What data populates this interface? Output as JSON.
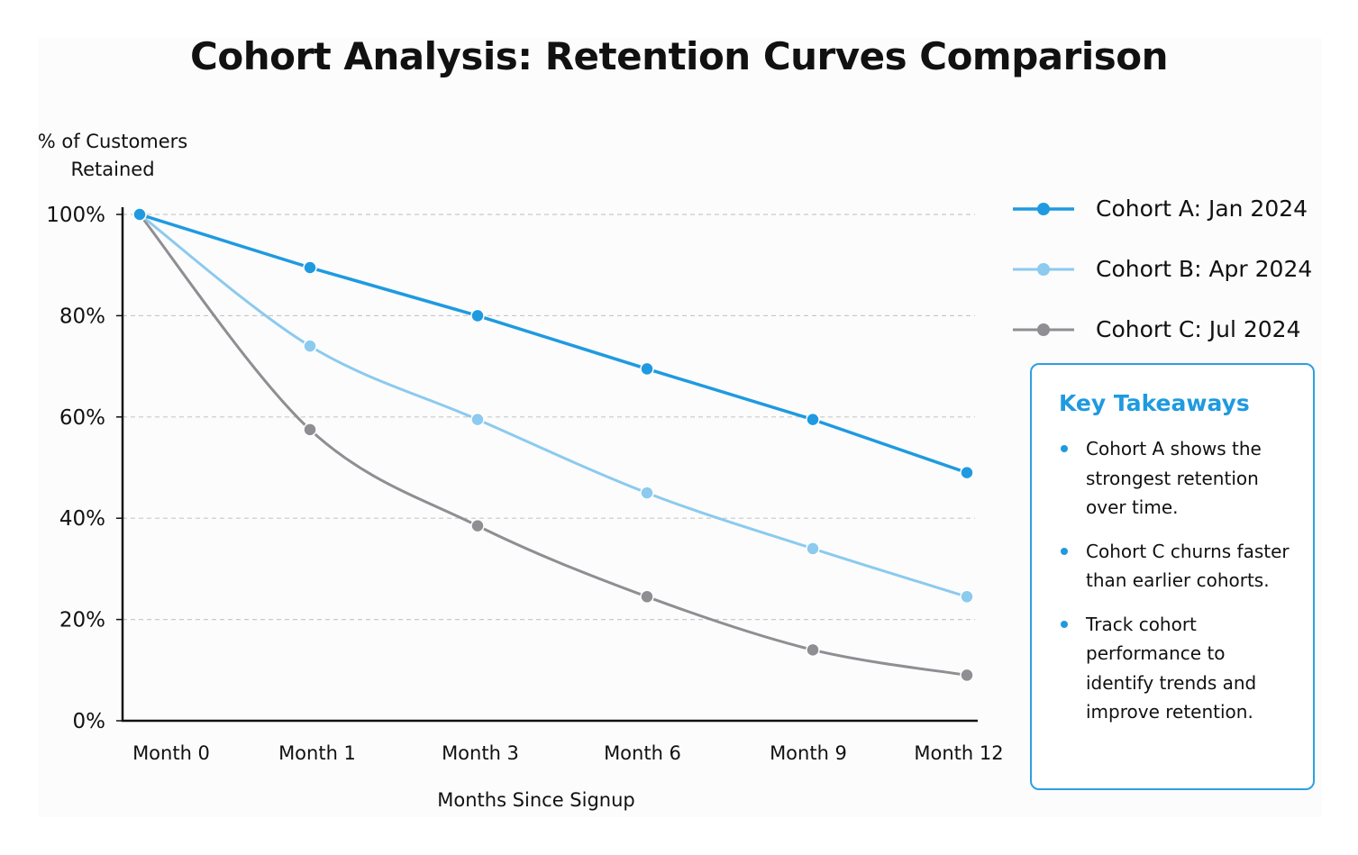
{
  "title": "Cohort Analysis: Retention Curves Comparison",
  "ylabel_lines": [
    "% of Customers",
    "Retained"
  ],
  "xlabel": "Months Since Signup",
  "legend_items": [
    {
      "label": "Cohort A: Jan 2024",
      "color": "#1f9ae0"
    },
    {
      "label": "Cohort B: Apr 2024",
      "color": "#8ccaef"
    },
    {
      "label": "Cohort C: Jul 2024",
      "color": "#8e8e93"
    }
  ],
  "takeaways": {
    "title": "Key Takeaways",
    "items": [
      "Cohort A shows the strongest retention over time.",
      "Cohort C churns faster than earlier cohorts.",
      "Track cohort performance to identify trends and improve retention."
    ],
    "accent": "#1f9ae0"
  },
  "chart_data": {
    "type": "line",
    "title": "Cohort Analysis: Retention Curves Comparison",
    "xlabel": "Months Since Signup",
    "ylabel": "% of Customers Retained",
    "categories": [
      "Month 0",
      "Month 1",
      "Month 3",
      "Month 6",
      "Month 9",
      "Month 12"
    ],
    "yticks": [
      "0%",
      "20%",
      "40%",
      "60%",
      "80%",
      "100%"
    ],
    "ylim": [
      0,
      100
    ],
    "grid": "horizontal dashed",
    "legend_position": "right",
    "series": [
      {
        "name": "Cohort A: Jan 2024",
        "color": "#1f9ae0",
        "values": [
          100,
          89.5,
          80,
          69.5,
          59.5,
          49
        ]
      },
      {
        "name": "Cohort B: Apr 2024",
        "color": "#8ccaef",
        "values": [
          100,
          74,
          59.5,
          45,
          34,
          24.5
        ]
      },
      {
        "name": "Cohort C: Jul 2024",
        "color": "#8e8e93",
        "values": [
          100,
          57.5,
          38.5,
          24.5,
          14,
          9
        ]
      }
    ]
  }
}
